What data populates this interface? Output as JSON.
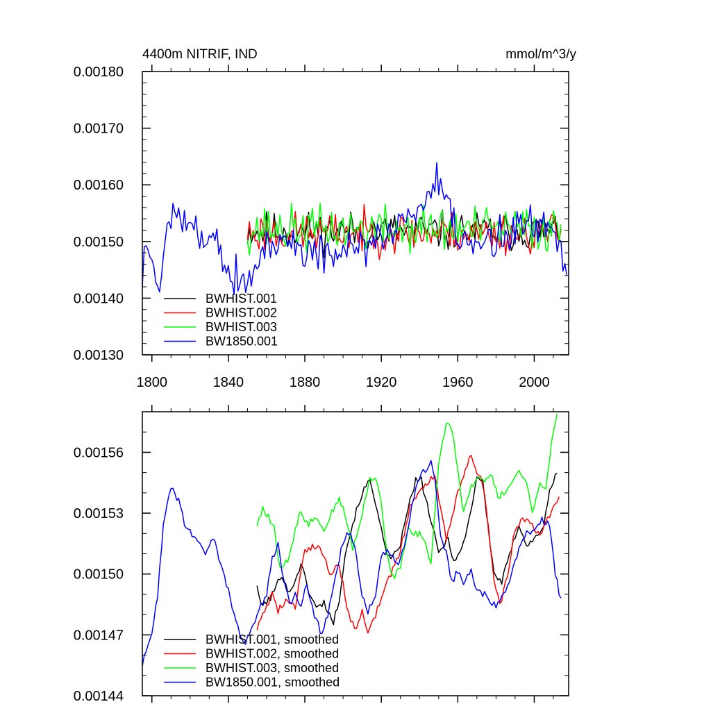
{
  "chart_data": [
    {
      "type": "line",
      "title": "4400m NITRIF, IND",
      "units": "mmol/m^3/y",
      "xlabel": "",
      "ylabel": "",
      "xlim": [
        1795,
        2018
      ],
      "ylim": [
        0.0013,
        0.0018
      ],
      "xticks": [
        1800,
        1840,
        1880,
        1920,
        1960,
        2000
      ],
      "xtick_labels": [
        "1800",
        "1840",
        "1880",
        "1920",
        "1960",
        "2000"
      ],
      "yticks": [
        0.0013,
        0.0014,
        0.0015,
        0.0016,
        0.0017,
        0.0018
      ],
      "ytick_labels": [
        "0.00130",
        "0.00140",
        "0.00150",
        "0.00160",
        "0.00170",
        "0.00180"
      ],
      "legend_position": "bottom-left",
      "series": [
        {
          "name": "BWHIST.001",
          "color": "#000000",
          "style": "noisy",
          "x_start": 1850,
          "x_end": 2014,
          "mean": 0.001518,
          "amp": 3.8e-05,
          "seed": 11
        },
        {
          "name": "BWHIST.002",
          "color": "#ff0000",
          "style": "noisy",
          "x_start": 1850,
          "x_end": 2014,
          "mean": 0.001515,
          "amp": 4e-05,
          "seed": 23
        },
        {
          "name": "BWHIST.003",
          "color": "#00ff00",
          "style": "noisy",
          "x_start": 1850,
          "x_end": 2014,
          "mean": 0.001522,
          "amp": 4.5e-05,
          "seed": 37
        },
        {
          "name": "BW1850.001",
          "color": "#0000ff",
          "style": "noisy",
          "x_start": 1795,
          "x_end": 2017,
          "mean": 0.001505,
          "amp": 4.2e-05,
          "seed": 5,
          "anchors": [
            [
              1795,
              0.00143
            ],
            [
              1797,
              0.00152
            ],
            [
              1800,
              0.00146
            ],
            [
              1803,
              0.0014
            ],
            [
              1806,
              0.00147
            ],
            [
              1809,
              0.00155
            ],
            [
              1811,
              0.00158
            ],
            [
              1816,
              0.00154
            ],
            [
              1820,
              0.00153
            ],
            [
              1826,
              0.0015
            ],
            [
              1833,
              0.00153
            ],
            [
              1838,
              0.00146
            ],
            [
              1842,
              0.00143
            ],
            [
              1846,
              0.00145
            ],
            [
              1850,
              0.00142
            ],
            [
              1860,
              0.0015
            ],
            [
              1880,
              0.00149
            ],
            [
              1900,
              0.00147
            ],
            [
              1920,
              0.00151
            ],
            [
              1930,
              0.00153
            ],
            [
              1950,
              0.0016
            ],
            [
              1960,
              0.0015
            ],
            [
              1975,
              0.00149
            ],
            [
              1985,
              0.00152
            ],
            [
              2000,
              0.00153
            ],
            [
              2010,
              0.00153
            ],
            [
              2017,
              0.00145
            ]
          ]
        }
      ]
    },
    {
      "type": "line",
      "title": "",
      "xlabel": "",
      "ylabel": "",
      "xlim": [
        1795,
        2018
      ],
      "ylim": [
        0.00144,
        0.00158
      ],
      "xticks": [
        1800,
        1840,
        1880,
        1920,
        1960,
        2000
      ],
      "yticks": [
        0.00144,
        0.00147,
        0.0015,
        0.00153,
        0.00156
      ],
      "ytick_labels": [
        "0.00144",
        "0.00147",
        "0.00150",
        "0.00153",
        "0.00156"
      ],
      "legend_position": "bottom-left",
      "series": [
        {
          "name": "BWHIST.001, smoothed",
          "color": "#000000",
          "style": "smooth",
          "seed": 101,
          "anchors": [
            [
              1855,
              0.001495
            ],
            [
              1857,
              0.001484
            ],
            [
              1862,
              0.001488
            ],
            [
              1868,
              0.0015
            ],
            [
              1872,
              0.00149
            ],
            [
              1878,
              0.001505
            ],
            [
              1882,
              0.001492
            ],
            [
              1886,
              0.001483
            ],
            [
              1890,
              0.001486
            ],
            [
              1895,
              0.001476
            ],
            [
              1898,
              0.001488
            ],
            [
              1901,
              0.00151
            ],
            [
              1906,
              0.001528
            ],
            [
              1910,
              0.00154
            ],
            [
              1914,
              0.001546
            ],
            [
              1918,
              0.001532
            ],
            [
              1922,
              0.001512
            ],
            [
              1925,
              0.001506
            ],
            [
              1930,
              0.001515
            ],
            [
              1935,
              0.001536
            ],
            [
              1938,
              0.001546
            ],
            [
              1941,
              0.001546
            ],
            [
              1945,
              0.00153
            ],
            [
              1950,
              0.00151
            ],
            [
              1955,
              0.001518
            ],
            [
              1958,
              0.001506
            ],
            [
              1962,
              0.001512
            ],
            [
              1966,
              0.001527
            ],
            [
              1970,
              0.001548
            ],
            [
              1973,
              0.001546
            ],
            [
              1976,
              0.001522
            ],
            [
              1979,
              0.0015
            ],
            [
              1983,
              0.001496
            ],
            [
              1988,
              0.001512
            ],
            [
              1992,
              0.001525
            ],
            [
              1996,
              0.001514
            ],
            [
              2000,
              0.001517
            ],
            [
              2005,
              0.001524
            ],
            [
              2008,
              0.00154
            ],
            [
              2012,
              0.001551
            ]
          ]
        },
        {
          "name": "BWHIST.002, smoothed",
          "color": "#ff0000",
          "style": "smooth",
          "seed": 202,
          "anchors": [
            [
              1855,
              0.001473
            ],
            [
              1858,
              0.001482
            ],
            [
              1861,
              0.001485
            ],
            [
              1863,
              0.001492
            ],
            [
              1866,
              0.001482
            ],
            [
              1870,
              0.001487
            ],
            [
              1875,
              0.001484
            ],
            [
              1880,
              0.001512
            ],
            [
              1885,
              0.001514
            ],
            [
              1890,
              0.00151
            ],
            [
              1893,
              0.0015
            ],
            [
              1898,
              0.001505
            ],
            [
              1902,
              0.001484
            ],
            [
              1906,
              0.001472
            ],
            [
              1910,
              0.001482
            ],
            [
              1913,
              0.00147
            ],
            [
              1917,
              0.00148
            ],
            [
              1922,
              0.001495
            ],
            [
              1926,
              0.001502
            ],
            [
              1930,
              0.001512
            ],
            [
              1935,
              0.001533
            ],
            [
              1940,
              0.00154
            ],
            [
              1944,
              0.001545
            ],
            [
              1948,
              0.001549
            ],
            [
              1951,
              0.001532
            ],
            [
              1954,
              0.001518
            ],
            [
              1957,
              0.001528
            ],
            [
              1960,
              0.00154
            ],
            [
              1964,
              0.001552
            ],
            [
              1967,
              0.00156
            ],
            [
              1970,
              0.00155
            ],
            [
              1973,
              0.001545
            ],
            [
              1976,
              0.001523
            ],
            [
              1979,
              0.001498
            ],
            [
              1982,
              0.001484
            ],
            [
              1986,
              0.0015
            ],
            [
              1990,
              0.001522
            ],
            [
              1994,
              0.001528
            ],
            [
              1999,
              0.001525
            ],
            [
              2003,
              0.001518
            ],
            [
              2006,
              0.001527
            ],
            [
              2010,
              0.001532
            ],
            [
              2013,
              0.001539
            ]
          ]
        },
        {
          "name": "BWHIST.003, smoothed",
          "color": "#00ff00",
          "style": "smooth",
          "seed": 303,
          "anchors": [
            [
              1855,
              0.001524
            ],
            [
              1858,
              0.001532
            ],
            [
              1861,
              0.001528
            ],
            [
              1864,
              0.001522
            ],
            [
              1867,
              0.001503
            ],
            [
              1872,
              0.001508
            ],
            [
              1877,
              0.00153
            ],
            [
              1882,
              0.001525
            ],
            [
              1886,
              0.001529
            ],
            [
              1890,
              0.001522
            ],
            [
              1894,
              0.00153
            ],
            [
              1898,
              0.001538
            ],
            [
              1902,
              0.001526
            ],
            [
              1905,
              0.001512
            ],
            [
              1910,
              0.00153
            ],
            [
              1914,
              0.001546
            ],
            [
              1917,
              0.001549
            ],
            [
              1920,
              0.001534
            ],
            [
              1923,
              0.00151
            ],
            [
              1926,
              0.001498
            ],
            [
              1930,
              0.001503
            ],
            [
              1934,
              0.001522
            ],
            [
              1937,
              0.001519
            ],
            [
              1940,
              0.00152
            ],
            [
              1944,
              0.001512
            ],
            [
              1946,
              0.001506
            ],
            [
              1950,
              0.001553
            ],
            [
              1954,
              0.001575
            ],
            [
              1957,
              0.001572
            ],
            [
              1960,
              0.00155
            ],
            [
              1963,
              0.00153
            ],
            [
              1967,
              0.001543
            ],
            [
              1970,
              0.001548
            ],
            [
              1974,
              0.001546
            ],
            [
              1977,
              0.00155
            ],
            [
              1981,
              0.001538
            ],
            [
              1985,
              0.00154
            ],
            [
              1989,
              0.001548
            ],
            [
              1993,
              0.00155
            ],
            [
              1996,
              0.001544
            ],
            [
              1999,
              0.00153
            ],
            [
              2003,
              0.001545
            ],
            [
              2006,
              0.001542
            ],
            [
              2009,
              0.001565
            ],
            [
              2012,
              0.00158
            ]
          ]
        },
        {
          "name": "BW1850.001, smoothed",
          "color": "#0000ff",
          "style": "smooth",
          "seed": 404,
          "anchors": [
            [
              1795,
              0.001455
            ],
            [
              1797,
              0.001462
            ],
            [
              1800,
              0.00147
            ],
            [
              1803,
              0.00149
            ],
            [
              1806,
              0.001525
            ],
            [
              1809,
              0.00154
            ],
            [
              1811,
              0.001542
            ],
            [
              1814,
              0.001536
            ],
            [
              1817,
              0.001525
            ],
            [
              1820,
              0.001521
            ],
            [
              1824,
              0.001516
            ],
            [
              1828,
              0.00151
            ],
            [
              1832,
              0.001518
            ],
            [
              1836,
              0.001505
            ],
            [
              1840,
              0.001492
            ],
            [
              1843,
              0.00148
            ],
            [
              1846,
              0.00147
            ],
            [
              1849,
              0.001466
            ],
            [
              1852,
              0.001473
            ],
            [
              1856,
              0.001482
            ],
            [
              1860,
              0.00149
            ],
            [
              1863,
              0.001508
            ],
            [
              1866,
              0.001514
            ],
            [
              1869,
              0.001497
            ],
            [
              1872,
              0.001485
            ],
            [
              1875,
              0.00149
            ],
            [
              1878,
              0.001484
            ],
            [
              1881,
              0.001495
            ],
            [
              1885,
              0.00148
            ],
            [
              1889,
              0.00147
            ],
            [
              1892,
              0.00148
            ],
            [
              1896,
              0.001498
            ],
            [
              1900,
              0.001516
            ],
            [
              1903,
              0.00152
            ],
            [
              1906,
              0.001515
            ],
            [
              1910,
              0.00149
            ],
            [
              1913,
              0.001482
            ],
            [
              1917,
              0.00149
            ],
            [
              1920,
              0.001508
            ],
            [
              1924,
              0.001512
            ],
            [
              1928,
              0.001504
            ],
            [
              1932,
              0.001512
            ],
            [
              1935,
              0.001528
            ],
            [
              1938,
              0.001543
            ],
            [
              1942,
              0.00155
            ],
            [
              1946,
              0.001555
            ],
            [
              1948,
              0.001548
            ],
            [
              1951,
              0.00152
            ],
            [
              1954,
              0.00151
            ],
            [
              1957,
              0.001496
            ],
            [
              1960,
              0.001502
            ],
            [
              1963,
              0.001496
            ],
            [
              1967,
              0.001503
            ],
            [
              1970,
              0.001492
            ],
            [
              1974,
              0.00149
            ],
            [
              1977,
              0.001484
            ],
            [
              1980,
              0.001485
            ],
            [
              1984,
              0.00149
            ],
            [
              1988,
              0.0015
            ],
            [
              1992,
              0.001512
            ],
            [
              1996,
              0.00152
            ],
            [
              2000,
              0.00152
            ],
            [
              2004,
              0.001527
            ],
            [
              2008,
              0.001524
            ],
            [
              2011,
              0.0015
            ],
            [
              2014,
              0.001487
            ]
          ]
        }
      ]
    }
  ]
}
